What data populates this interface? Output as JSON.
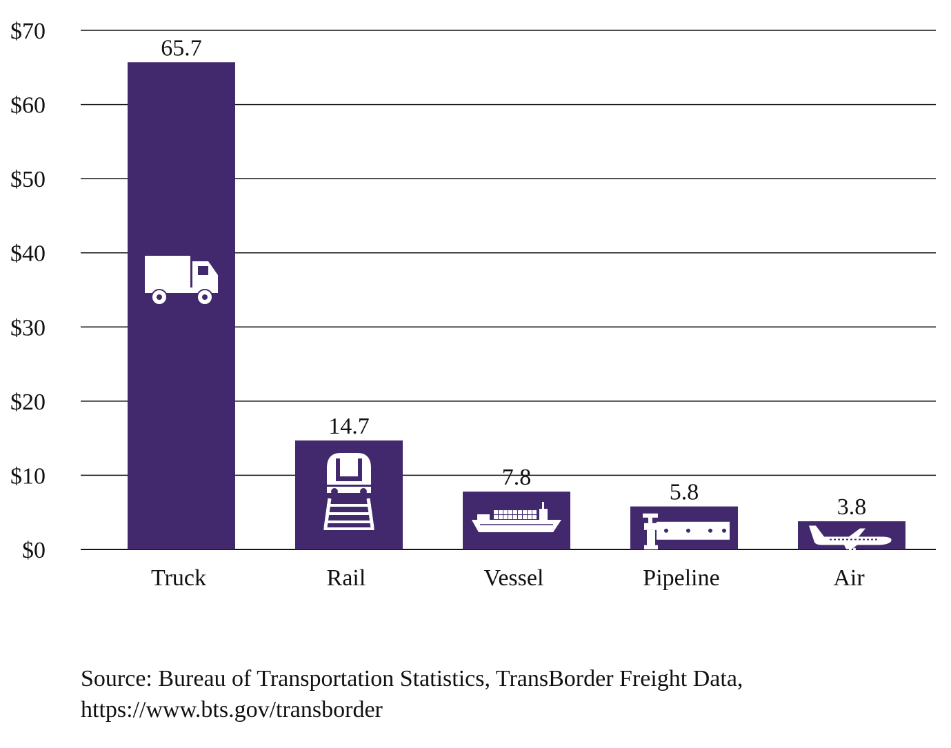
{
  "chart_data": {
    "type": "bar",
    "categories": [
      "Truck",
      "Rail",
      "Vessel",
      "Pipeline",
      "Air"
    ],
    "values": [
      65.7,
      14.7,
      7.8,
      5.8,
      3.8
    ],
    "data_labels": [
      "65.7",
      "14.7",
      "7.8",
      "5.8",
      "3.8"
    ],
    "icons": [
      "truck-icon",
      "train-icon",
      "ship-icon",
      "pipeline-icon",
      "airplane-icon"
    ],
    "y_ticks": [
      0,
      10,
      20,
      30,
      40,
      50,
      60,
      70
    ],
    "y_tick_labels": [
      "$0",
      "$10",
      "$20",
      "$30",
      "$40",
      "$50",
      "$60",
      "$70"
    ],
    "ylim": [
      0,
      70
    ],
    "grid": true,
    "title": "",
    "xlabel": "",
    "ylabel": "",
    "bar_color": "#42296e",
    "icon_color": "#ffffff"
  },
  "source": {
    "line1": "Source: Bureau of Transportation Statistics, TransBorder Freight Data,",
    "line2": "https://www.bts.gov/transborder"
  }
}
